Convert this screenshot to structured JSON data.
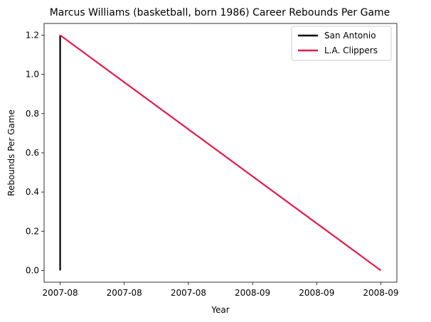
{
  "chart_data": {
    "type": "line",
    "title": "Marcus Williams (basketball, born 1986) Career Rebounds Per Game",
    "xlabel": "Year",
    "ylabel": "Rebounds Per Game",
    "x_tick_labels": [
      "2007-08",
      "2007-08",
      "2007-08",
      "2008-09",
      "2008-09",
      "2008-09"
    ],
    "y_ticks": [
      "0.0",
      "0.2",
      "0.4",
      "0.6",
      "0.8",
      "1.0",
      "1.2"
    ],
    "ylim": [
      -0.06,
      1.26
    ],
    "xlim": [
      -0.05,
      1.05
    ],
    "legend_position": "upper right",
    "grid": false,
    "series": [
      {
        "name": "San Antonio",
        "color": "#000000",
        "x": [
          0,
          0
        ],
        "y": [
          0.0,
          1.2
        ]
      },
      {
        "name": "L.A. Clippers",
        "color": "#e6194b",
        "x": [
          0,
          1
        ],
        "y": [
          1.2,
          0.0
        ]
      }
    ]
  }
}
